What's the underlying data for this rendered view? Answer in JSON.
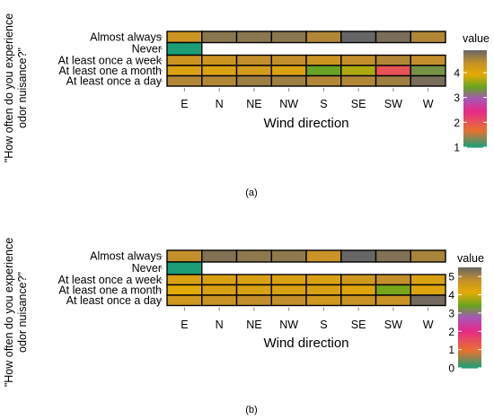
{
  "panels": [
    {
      "caption": "(a)",
      "ylabel": "\"How often do you experience odor nuisance?\"",
      "ylabel_lines": [
        "\"How often do you experience",
        "odor nuisance?\""
      ],
      "xlabel": "Wind direction",
      "legend_title": "value",
      "legend_ticks": [
        "1",
        "2",
        "3",
        "4"
      ]
    },
    {
      "caption": "(b)",
      "ylabel": "\"How often do you experience odor nuisance?\"",
      "ylabel_lines": [
        "\"How often do you experience",
        "odor nuisance?\""
      ],
      "xlabel": "Wind direction",
      "legend_title": "value",
      "legend_ticks": [
        "0",
        "1",
        "2",
        "3",
        "4",
        "5"
      ]
    }
  ],
  "chart_data": [
    {
      "type": "heatmap",
      "xlabel": "Wind direction",
      "ylabel": "\"How often do you experience odor nuisance?\"",
      "x": [
        "E",
        "N",
        "NE",
        "NW",
        "S",
        "SE",
        "SW",
        "W"
      ],
      "y": [
        "Almost always",
        "Never",
        "At least once a week",
        "At least one a month",
        "At least once a day"
      ],
      "values": [
        [
          4.3,
          4.7,
          4.7,
          4.7,
          4.5,
          4.9,
          4.8,
          4.5
        ],
        [
          1.0,
          null,
          null,
          null,
          null,
          null,
          null,
          null
        ],
        [
          4.3,
          4.3,
          4.4,
          4.4,
          4.3,
          4.4,
          4.5,
          4.4
        ],
        [
          4.1,
          4.1,
          4.2,
          4.1,
          3.4,
          3.7,
          2.0,
          3.3
        ],
        [
          4.5,
          4.5,
          4.6,
          4.6,
          4.5,
          4.5,
          4.6,
          4.8
        ]
      ],
      "colorbar": {
        "title": "value",
        "range": [
          1,
          4.9
        ],
        "ticks": [
          1,
          2,
          3,
          4
        ]
      },
      "legend_position": "right"
    },
    {
      "type": "heatmap",
      "xlabel": "Wind direction",
      "ylabel": "\"How often do you experience odor nuisance?\"",
      "x": [
        "E",
        "N",
        "NE",
        "NW",
        "S",
        "SE",
        "SW",
        "W"
      ],
      "y": [
        "Almost always",
        "Never",
        "At least once a week",
        "At least one a month",
        "At least once a day"
      ],
      "values": [
        [
          4.8,
          5.3,
          5.2,
          5.2,
          4.7,
          5.5,
          5.3,
          5.0
        ],
        [
          0.0,
          null,
          null,
          null,
          null,
          null,
          null,
          null
        ],
        [
          4.4,
          4.4,
          4.4,
          4.4,
          4.4,
          4.6,
          4.8,
          4.4
        ],
        [
          4.1,
          4.4,
          4.4,
          4.4,
          4.4,
          4.3,
          3.5,
          4.3
        ],
        [
          4.6,
          4.7,
          4.8,
          4.8,
          4.6,
          4.7,
          4.7,
          5.4
        ]
      ],
      "colorbar": {
        "title": "value",
        "range": [
          0,
          5.5
        ],
        "ticks": [
          0,
          1,
          2,
          3,
          4,
          5
        ]
      },
      "legend_position": "right"
    }
  ],
  "colors": {
    "stops": [
      [
        0.0,
        "#1b9e77"
      ],
      [
        0.17,
        "#e7722f"
      ],
      [
        0.37,
        "#e7298a"
      ],
      [
        0.5,
        "#a656b8"
      ],
      [
        0.62,
        "#66a61e"
      ],
      [
        0.75,
        "#e6ab02"
      ],
      [
        0.87,
        "#c5902a"
      ],
      [
        1.0,
        "#666666"
      ]
    ],
    "grid_line": "#000000",
    "axis": "#888888"
  }
}
